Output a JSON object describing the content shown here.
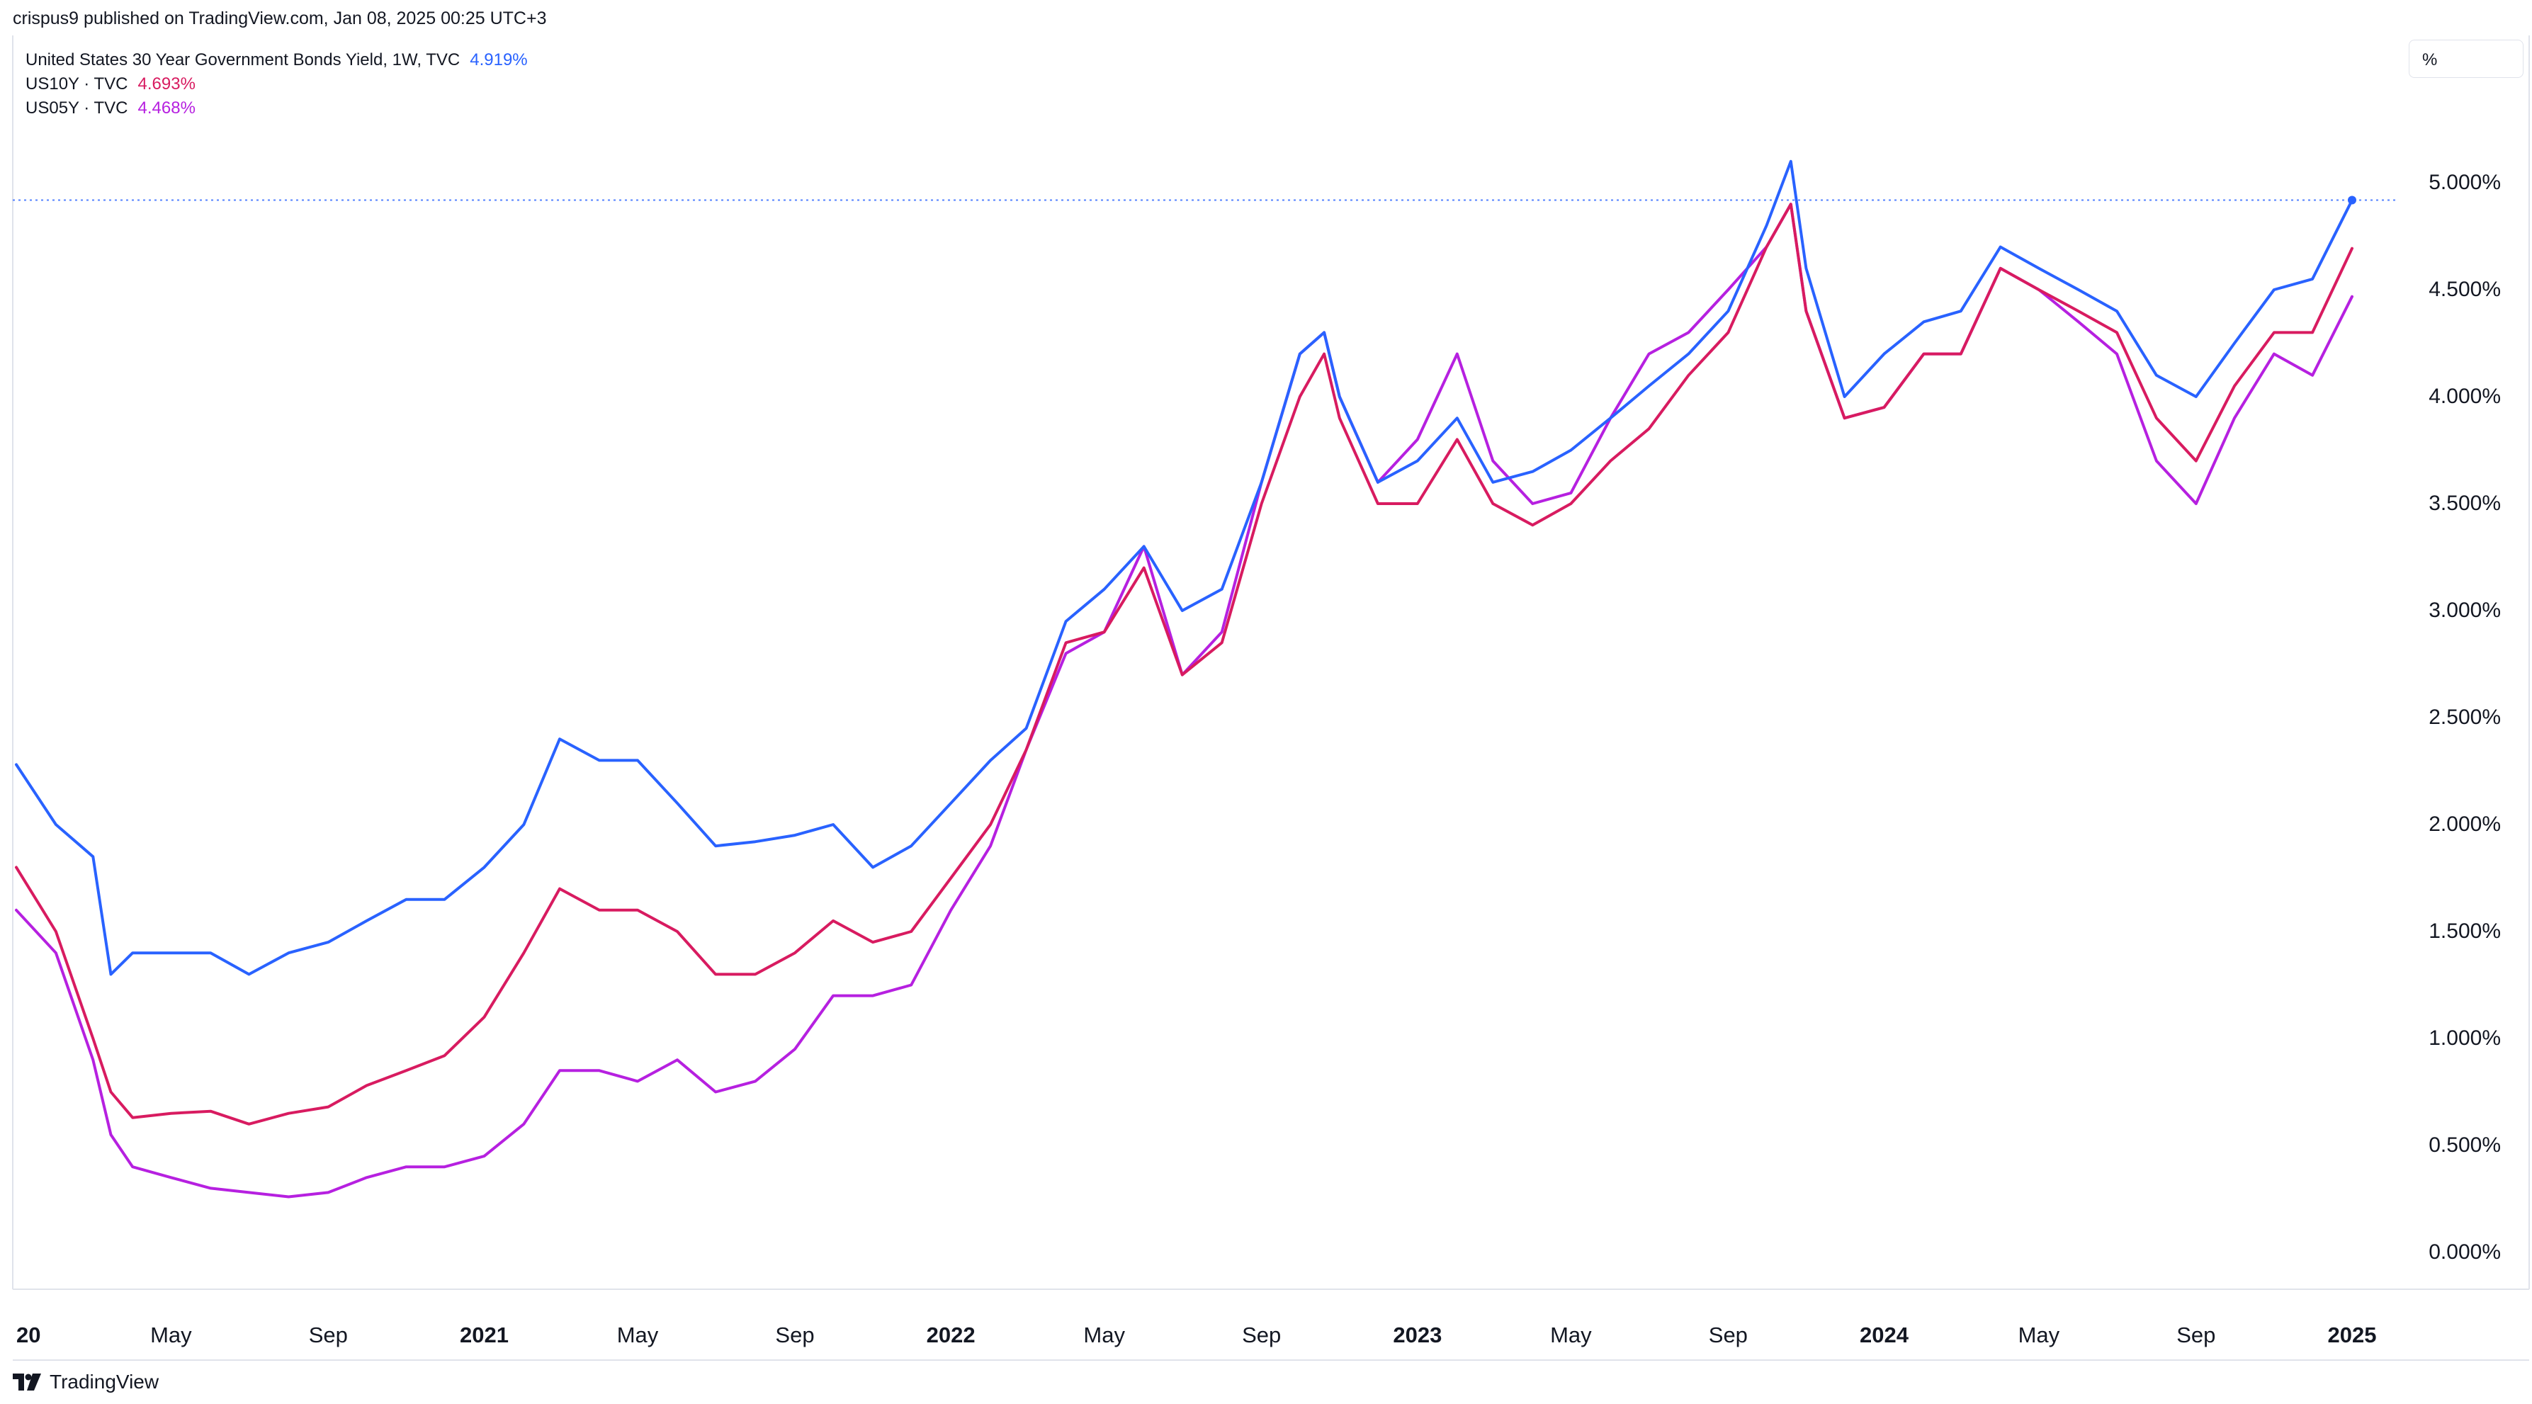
{
  "header": {
    "publish_text": "crispus9 published on TradingView.com, Jan 08, 2025 00:25 UTC+3"
  },
  "legend": [
    {
      "label": "United States 30 Year Government Bonds Yield, 1W, TVC",
      "value": "4.919%",
      "color": "#2962ff"
    },
    {
      "label": "US10Y · TVC",
      "value": "4.693%",
      "color": "#d81b60"
    },
    {
      "label": "US05Y · TVC",
      "value": "4.468%",
      "color": "#b620e0"
    }
  ],
  "unit_label": "%",
  "brand": {
    "name": "TradingView",
    "icon": "tradingview-logo-icon"
  },
  "chart_data": {
    "type": "line",
    "ylim": [
      -0.5,
      5.5
    ],
    "y_ticks": [
      "0.000%",
      "0.500%",
      "1.000%",
      "1.500%",
      "2.000%",
      "2.500%",
      "3.000%",
      "3.500%",
      "4.000%",
      "4.500%",
      "5.000%"
    ],
    "x_tick_labels": [
      {
        "label": "20",
        "date": "2020-01-01",
        "bold": true
      },
      {
        "label": "May",
        "date": "2020-05-01",
        "bold": false
      },
      {
        "label": "Sep",
        "date": "2020-09-01",
        "bold": false
      },
      {
        "label": "2021",
        "date": "2021-01-01",
        "bold": true
      },
      {
        "label": "May",
        "date": "2021-05-01",
        "bold": false
      },
      {
        "label": "Sep",
        "date": "2021-09-01",
        "bold": false
      },
      {
        "label": "2022",
        "date": "2022-01-01",
        "bold": true
      },
      {
        "label": "May",
        "date": "2022-05-01",
        "bold": false
      },
      {
        "label": "Sep",
        "date": "2022-09-01",
        "bold": false
      },
      {
        "label": "2023",
        "date": "2023-01-01",
        "bold": true
      },
      {
        "label": "May",
        "date": "2023-05-01",
        "bold": false
      },
      {
        "label": "Sep",
        "date": "2023-09-01",
        "bold": false
      },
      {
        "label": "2024",
        "date": "2024-01-01",
        "bold": true
      },
      {
        "label": "May",
        "date": "2024-05-01",
        "bold": false
      },
      {
        "label": "Sep",
        "date": "2024-09-01",
        "bold": false
      },
      {
        "label": "2025",
        "date": "2025-01-01",
        "bold": true
      }
    ],
    "x": [
      "2020-01-01",
      "2020-02-01",
      "2020-03-01",
      "2020-03-15",
      "2020-04-01",
      "2020-05-01",
      "2020-06-01",
      "2020-07-01",
      "2020-08-01",
      "2020-09-01",
      "2020-10-01",
      "2020-11-01",
      "2020-12-01",
      "2021-01-01",
      "2021-02-01",
      "2021-03-01",
      "2021-04-01",
      "2021-05-01",
      "2021-06-01",
      "2021-07-01",
      "2021-08-01",
      "2021-09-01",
      "2021-10-01",
      "2021-11-01",
      "2021-12-01",
      "2022-01-01",
      "2022-02-01",
      "2022-03-01",
      "2022-04-01",
      "2022-05-01",
      "2022-06-01",
      "2022-07-01",
      "2022-08-01",
      "2022-09-01",
      "2022-10-01",
      "2022-10-20",
      "2022-11-01",
      "2022-12-01",
      "2023-01-01",
      "2023-02-01",
      "2023-03-01",
      "2023-04-01",
      "2023-05-01",
      "2023-06-01",
      "2023-07-01",
      "2023-08-01",
      "2023-09-01",
      "2023-10-01",
      "2023-10-20",
      "2023-11-01",
      "2023-12-01",
      "2024-01-01",
      "2024-02-01",
      "2024-03-01",
      "2024-04-01",
      "2024-05-01",
      "2024-06-01",
      "2024-07-01",
      "2024-08-01",
      "2024-09-01",
      "2024-10-01",
      "2024-11-01",
      "2024-12-01",
      "2025-01-01"
    ],
    "series": [
      {
        "name": "United States 30 Year Government Bonds Yield, 1W, TVC",
        "color": "#2962ff",
        "values": [
          2.28,
          2.0,
          1.85,
          1.3,
          1.4,
          1.4,
          1.4,
          1.3,
          1.4,
          1.45,
          1.55,
          1.65,
          1.65,
          1.8,
          2.0,
          2.4,
          2.3,
          2.3,
          2.1,
          1.9,
          1.92,
          1.95,
          2.0,
          1.8,
          1.9,
          2.1,
          2.3,
          2.45,
          2.95,
          3.1,
          3.3,
          3.0,
          3.1,
          3.6,
          4.2,
          4.3,
          4.0,
          3.6,
          3.7,
          3.9,
          3.6,
          3.65,
          3.75,
          3.9,
          4.05,
          4.2,
          4.4,
          4.8,
          5.1,
          4.6,
          4.0,
          4.2,
          4.35,
          4.4,
          4.7,
          4.6,
          4.5,
          4.4,
          4.1,
          4.0,
          4.25,
          4.5,
          4.55,
          4.919
        ]
      },
      {
        "name": "US10Y · TVC",
        "color": "#d81b60",
        "values": [
          1.8,
          1.5,
          1.0,
          0.75,
          0.63,
          0.65,
          0.66,
          0.6,
          0.65,
          0.68,
          0.78,
          0.85,
          0.92,
          1.1,
          1.4,
          1.7,
          1.6,
          1.6,
          1.5,
          1.3,
          1.3,
          1.4,
          1.55,
          1.45,
          1.5,
          1.75,
          2.0,
          2.35,
          2.85,
          2.9,
          3.2,
          2.7,
          2.85,
          3.5,
          4.0,
          4.2,
          3.9,
          3.5,
          3.5,
          3.8,
          3.5,
          3.4,
          3.5,
          3.7,
          3.85,
          4.1,
          4.3,
          4.7,
          4.9,
          4.4,
          3.9,
          3.95,
          4.2,
          4.2,
          4.6,
          4.5,
          4.4,
          4.3,
          3.9,
          3.7,
          4.05,
          4.3,
          4.3,
          4.693
        ]
      },
      {
        "name": "US05Y · TVC",
        "color": "#b620e0",
        "values": [
          1.6,
          1.4,
          0.9,
          0.55,
          0.4,
          0.35,
          0.3,
          0.28,
          0.26,
          0.28,
          0.35,
          0.4,
          0.4,
          0.45,
          0.6,
          0.85,
          0.85,
          0.8,
          0.9,
          0.75,
          0.8,
          0.95,
          1.2,
          1.2,
          1.25,
          1.6,
          1.9,
          2.35,
          2.8,
          2.9,
          3.3,
          2.7,
          2.9,
          3.6,
          4.2,
          4.3,
          4.0,
          3.6,
          3.8,
          4.2,
          3.7,
          3.5,
          3.55,
          3.9,
          4.2,
          4.3,
          4.5,
          4.7,
          4.9,
          4.4,
          3.9,
          3.95,
          4.2,
          4.2,
          4.6,
          4.5,
          4.35,
          4.2,
          3.7,
          3.5,
          3.9,
          4.2,
          4.1,
          4.468
        ]
      }
    ],
    "last_price_line": {
      "value": 4.919,
      "series": "United States 30 Year Government Bonds Yield, 1W, TVC"
    },
    "grid": false,
    "legend_position": "top-left",
    "axis_position": "right"
  }
}
